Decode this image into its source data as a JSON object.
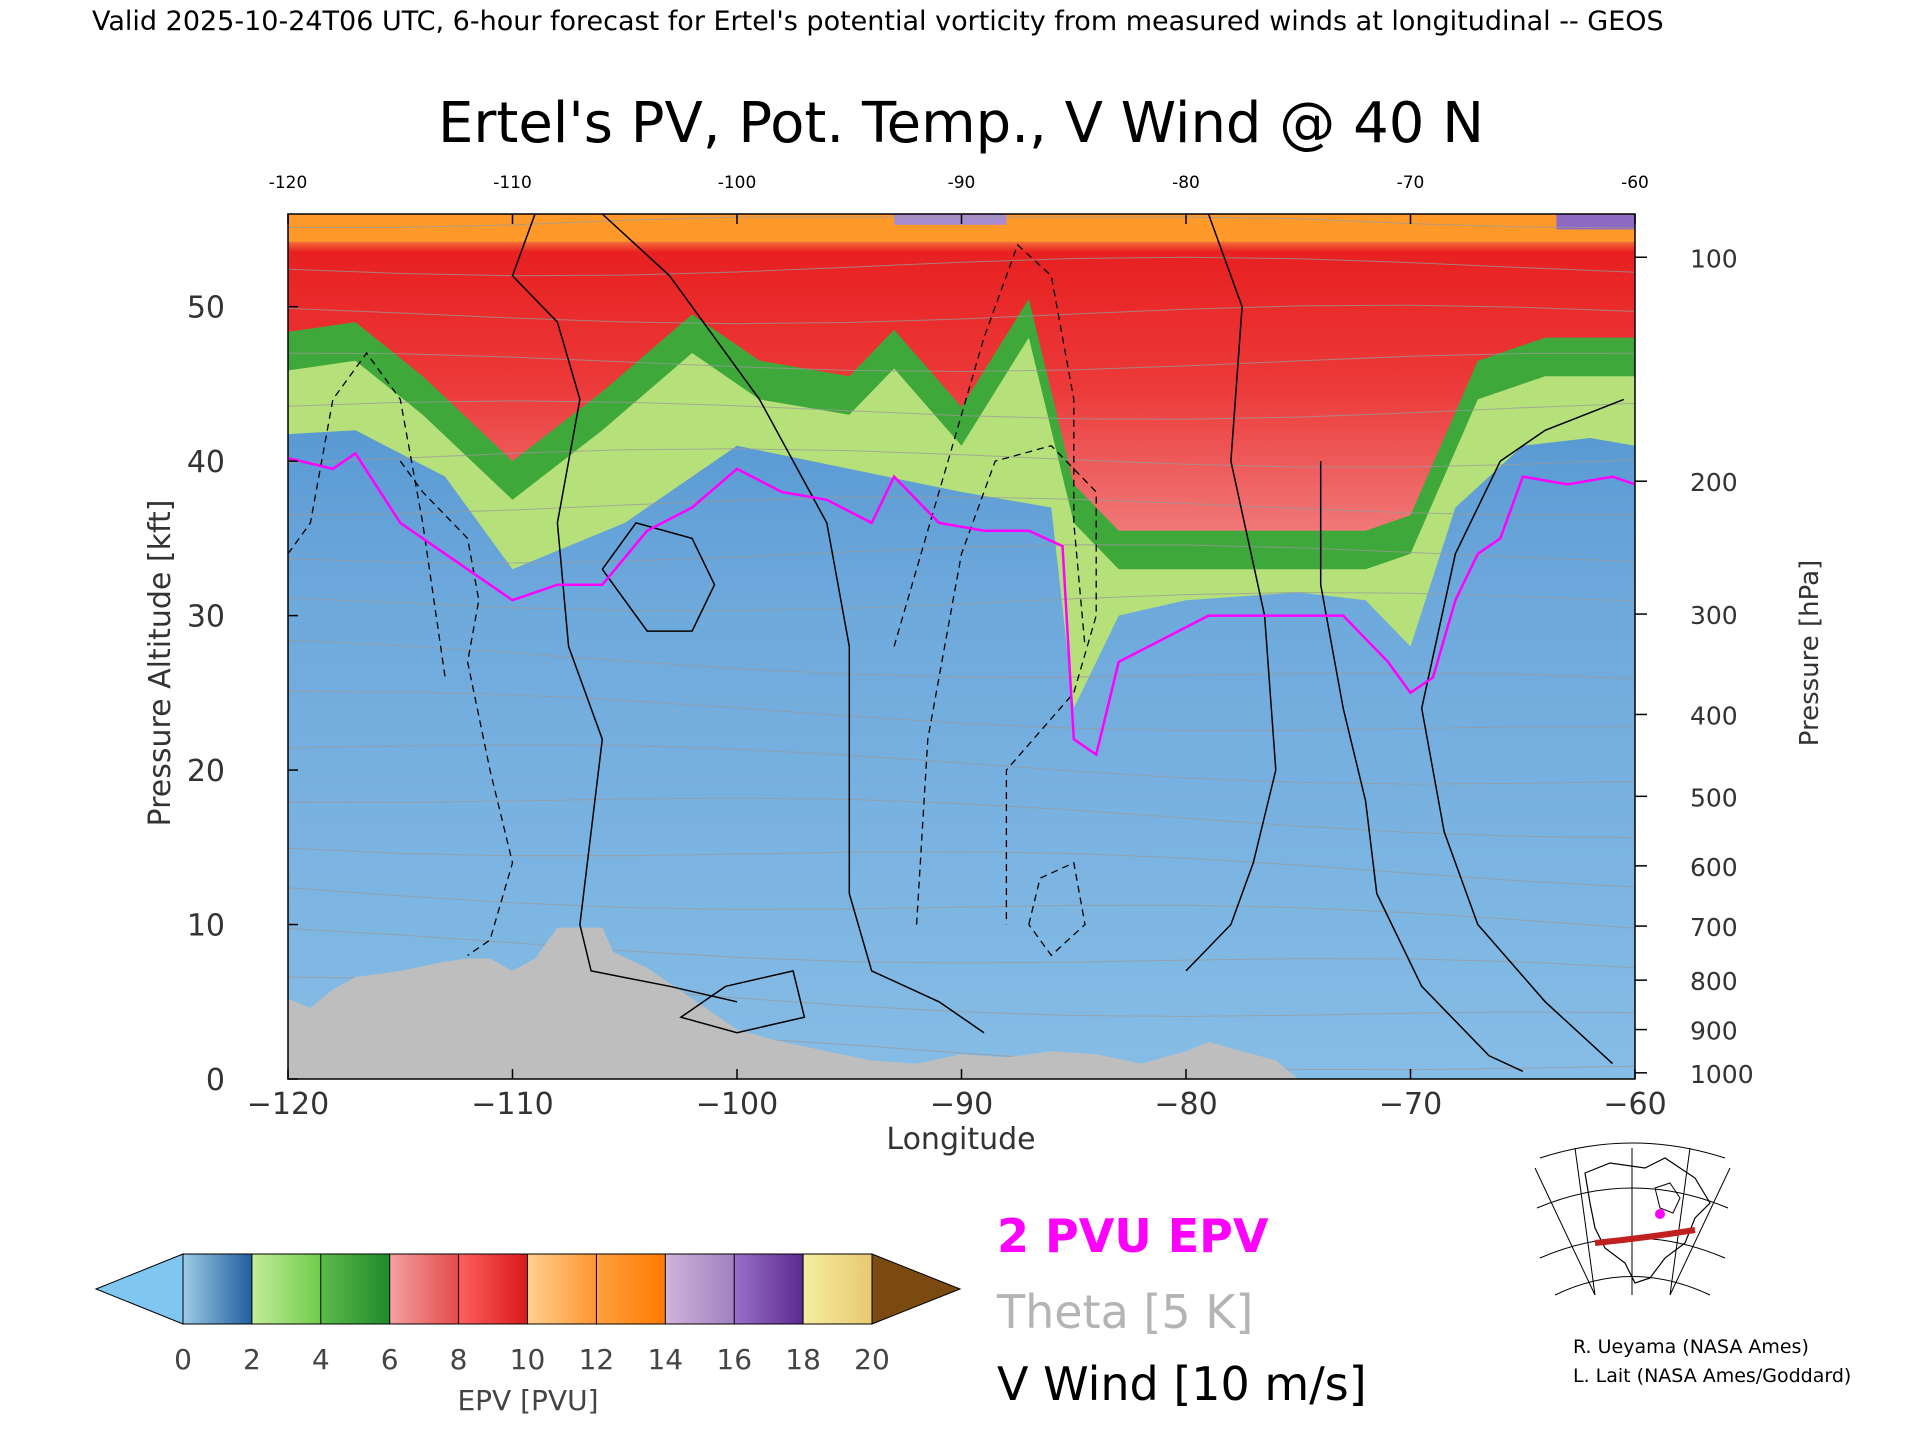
{
  "header": {
    "valid_line": "Valid 2025-10-24T06 UTC, 6-hour forecast for Ertel's potential vorticity from measured winds at longitudinal -- GEOS"
  },
  "colors": {
    "epv_2pvu": "#ff00ff",
    "theta": "#a0a0a0",
    "vwind": "#000000",
    "terrain": "#bebebe"
  },
  "chart_data": {
    "type": "heatmap",
    "title": "Ertel's PV, Pot. Temp., V Wind @ 40 N",
    "xlabel": "Longitude",
    "ylabel": "Pressure Altitude [kft]",
    "ylabel_right": "Pressure [hPa]",
    "xlim": [
      -120,
      -60
    ],
    "ylim": [
      0,
      56
    ],
    "x_ticks": [
      -120,
      -110,
      -100,
      -90,
      -80,
      -70,
      -60
    ],
    "x_tick_labels": [
      "−120",
      "−110",
      "−100",
      "−90",
      "−80",
      "−70",
      "−60"
    ],
    "top_tick_labels": [
      "-120",
      "-110",
      "-100",
      "-90",
      "-80",
      "-70",
      "-60"
    ],
    "y_ticks": [
      0,
      10,
      20,
      30,
      40,
      50
    ],
    "y_tick_labels": [
      "0",
      "10",
      "20",
      "30",
      "40",
      "50"
    ],
    "pressure_ticks": [
      {
        "hpa": "100",
        "kft": 53.2
      },
      {
        "hpa": "200",
        "kft": 38.7
      },
      {
        "hpa": "300",
        "kft": 30.1
      },
      {
        "hpa": "400",
        "kft": 23.6
      },
      {
        "hpa": "500",
        "kft": 18.3
      },
      {
        "hpa": "600",
        "kft": 13.8
      },
      {
        "hpa": "700",
        "kft": 9.9
      },
      {
        "hpa": "800",
        "kft": 6.4
      },
      {
        "hpa": "900",
        "kft": 3.2
      },
      {
        "hpa": "1000",
        "kft": 0.4
      }
    ],
    "tropopause_2pvu_kft": [
      [
        -120,
        40.2
      ],
      [
        -118,
        39.5
      ],
      [
        -117,
        40.5
      ],
      [
        -115,
        36
      ],
      [
        -113,
        34
      ],
      [
        -111,
        32
      ],
      [
        -110,
        31
      ],
      [
        -108,
        32
      ],
      [
        -106,
        32
      ],
      [
        -104,
        35.5
      ],
      [
        -102,
        37
      ],
      [
        -100,
        39.5
      ],
      [
        -98,
        38
      ],
      [
        -96,
        37.5
      ],
      [
        -94,
        36
      ],
      [
        -93,
        39
      ],
      [
        -91,
        36
      ],
      [
        -89,
        35.5
      ],
      [
        -87,
        35.5
      ],
      [
        -85.5,
        34.5
      ],
      [
        -85,
        22
      ],
      [
        -84,
        21
      ],
      [
        -83,
        27
      ],
      [
        -81,
        28.5
      ],
      [
        -79,
        30
      ],
      [
        -76,
        30
      ],
      [
        -73,
        30
      ],
      [
        -71,
        27
      ],
      [
        -70,
        25
      ],
      [
        -69,
        26
      ],
      [
        -68,
        31
      ],
      [
        -67,
        34
      ],
      [
        -66,
        35
      ],
      [
        -65,
        39
      ],
      [
        -63,
        38.5
      ],
      [
        -61,
        39
      ],
      [
        -60,
        38.5
      ]
    ],
    "epv_bands_top_kft": {
      "light_green": [
        [
          -120,
          41
        ],
        [
          -117,
          42
        ],
        [
          -113,
          39
        ],
        [
          -110,
          33
        ],
        [
          -105,
          36
        ],
        [
          -100,
          41
        ],
        [
          -95,
          39.5
        ],
        [
          -90,
          38
        ],
        [
          -86,
          37
        ],
        [
          -85,
          24
        ],
        [
          -83,
          30
        ],
        [
          -80,
          31
        ],
        [
          -75,
          31.5
        ],
        [
          -72,
          31
        ],
        [
          -70,
          28
        ],
        [
          -68,
          37
        ],
        [
          -65,
          41
        ],
        [
          -62,
          41.5
        ],
        [
          -60,
          41
        ]
      ],
      "green": [
        [
          -120,
          44
        ],
        [
          -117,
          46.5
        ],
        [
          -114,
          43
        ],
        [
          -110,
          37.5
        ],
        [
          -106,
          42
        ],
        [
          -102,
          47
        ],
        [
          -99,
          44
        ],
        [
          -95,
          43
        ],
        [
          -93,
          46
        ],
        [
          -90,
          41
        ],
        [
          -87,
          48
        ],
        [
          -85,
          36
        ],
        [
          -83,
          33
        ],
        [
          -80,
          33
        ],
        [
          -75,
          33
        ],
        [
          -72,
          33
        ],
        [
          -70,
          34
        ],
        [
          -67,
          44
        ],
        [
          -64,
          45.5
        ],
        [
          -60,
          45.5
        ]
      ]
    },
    "terrain_kft": [
      [
        -120,
        5.2
      ],
      [
        -119,
        4.6
      ],
      [
        -118,
        5.8
      ],
      [
        -117,
        6.6
      ],
      [
        -115,
        7.0
      ],
      [
        -113,
        7.6
      ],
      [
        -112,
        7.8
      ],
      [
        -111,
        7.8
      ],
      [
        -110,
        7.0
      ],
      [
        -109,
        7.8
      ],
      [
        -108,
        9.8
      ],
      [
        -106,
        9.8
      ],
      [
        -105.5,
        8.2
      ],
      [
        -104,
        7.2
      ],
      [
        -103,
        6.2
      ],
      [
        -102,
        5.2
      ],
      [
        -101,
        4.2
      ],
      [
        -100,
        3.2
      ],
      [
        -98,
        2.4
      ],
      [
        -96,
        1.8
      ],
      [
        -94,
        1.2
      ],
      [
        -92,
        1.0
      ],
      [
        -90,
        1.6
      ],
      [
        -88,
        1.4
      ],
      [
        -86,
        1.8
      ],
      [
        -84,
        1.6
      ],
      [
        -82,
        1.0
      ],
      [
        -80,
        1.8
      ],
      [
        -79,
        2.4
      ],
      [
        -78,
        2.0
      ],
      [
        -76,
        1.2
      ],
      [
        -75,
        0
      ]
    ],
    "vwind_contours_solid": [
      {
        "label": "0",
        "points": [
          [
            -109,
            56
          ],
          [
            -110,
            52
          ],
          [
            -108,
            49
          ],
          [
            -107,
            44
          ],
          [
            -108,
            36
          ],
          [
            -107.5,
            28
          ],
          [
            -106,
            22
          ],
          [
            -106.5,
            16
          ],
          [
            -107,
            10
          ],
          [
            -106.5,
            7
          ],
          [
            -103,
            6
          ],
          [
            -100,
            5
          ]
        ]
      },
      {
        "label": "0",
        "points": [
          [
            -106,
            56
          ],
          [
            -103,
            52
          ],
          [
            -99,
            44
          ],
          [
            -96,
            36
          ],
          [
            -95,
            28
          ],
          [
            -95,
            20
          ],
          [
            -95,
            12
          ],
          [
            -94,
            7
          ],
          [
            -91,
            5
          ],
          [
            -89,
            3
          ]
        ]
      },
      {
        "label": "0",
        "points": [
          [
            -79,
            56
          ],
          [
            -77.5,
            50
          ],
          [
            -78,
            40
          ],
          [
            -76.5,
            30
          ],
          [
            -76,
            20
          ],
          [
            -77,
            14
          ],
          [
            -78,
            10
          ],
          [
            -80,
            7
          ]
        ]
      },
      {
        "label": "10",
        "points": [
          [
            -74,
            40
          ],
          [
            -74,
            32
          ],
          [
            -73,
            24
          ],
          [
            -72,
            18
          ],
          [
            -71.5,
            12
          ],
          [
            -69.5,
            6
          ],
          [
            -66.5,
            1.5
          ],
          [
            -65,
            0.5
          ]
        ]
      },
      {
        "label": "10",
        "points": [
          [
            -60.5,
            44
          ],
          [
            -64,
            42
          ],
          [
            -66,
            40
          ],
          [
            -68,
            34
          ],
          [
            -69.5,
            24
          ],
          [
            -68.5,
            16
          ],
          [
            -67,
            10
          ],
          [
            -64,
            5
          ],
          [
            -61,
            1
          ]
        ]
      },
      {
        "label": "10",
        "points": [
          [
            -106,
            33
          ],
          [
            -104.5,
            36
          ],
          [
            -102,
            35
          ],
          [
            -101,
            32
          ],
          [
            -102,
            29
          ],
          [
            -104,
            29
          ],
          [
            -106,
            33
          ]
        ]
      },
      {
        "label": "10",
        "points": [
          [
            -100.5,
            6
          ],
          [
            -102.5,
            4
          ],
          [
            -100,
            3
          ],
          [
            -97,
            4
          ],
          [
            -97.5,
            7
          ],
          [
            -100.5,
            6
          ]
        ]
      }
    ],
    "vwind_contours_dashed": [
      {
        "label": "-10",
        "points": [
          [
            -120,
            34
          ],
          [
            -119,
            36
          ],
          [
            -118,
            44
          ],
          [
            -116.5,
            47
          ],
          [
            -115,
            44
          ],
          [
            -114,
            36
          ],
          [
            -113,
            26
          ]
        ]
      },
      {
        "label": "-10",
        "points": [
          [
            -115,
            40
          ],
          [
            -114,
            38
          ],
          [
            -112,
            35
          ],
          [
            -111.5,
            31
          ],
          [
            -112,
            27
          ],
          [
            -111,
            20
          ],
          [
            -110,
            14
          ],
          [
            -111,
            9
          ],
          [
            -112,
            8
          ]
        ]
      },
      {
        "label": "-10",
        "points": [
          [
            -93,
            28
          ],
          [
            -91,
            38
          ],
          [
            -89,
            48
          ],
          [
            -87.5,
            54
          ],
          [
            -86,
            52
          ],
          [
            -85,
            44
          ],
          [
            -85,
            36
          ],
          [
            -84.5,
            28
          ]
        ]
      },
      {
        "label": "-10",
        "points": [
          [
            -92,
            10
          ],
          [
            -91.5,
            22
          ],
          [
            -90,
            34
          ],
          [
            -88.5,
            40
          ],
          [
            -86,
            41
          ],
          [
            -84,
            38
          ],
          [
            -84,
            30
          ],
          [
            -85,
            25
          ],
          [
            -88,
            20
          ],
          [
            -88,
            14
          ],
          [
            -88,
            10
          ]
        ]
      },
      {
        "label": "-10",
        "points": [
          [
            -87,
            10
          ],
          [
            -86.5,
            13
          ],
          [
            -85,
            14
          ],
          [
            -84.5,
            10
          ],
          [
            -86,
            8
          ],
          [
            -87,
            10
          ]
        ]
      }
    ]
  },
  "legend": {
    "epv_label": "2 PVU EPV",
    "theta_label": "Theta [5 K]",
    "vwind_label": "V Wind [10 m/s]"
  },
  "colorbar": {
    "ticks": [
      "0",
      "2",
      "4",
      "6",
      "8",
      "10",
      "12",
      "14",
      "16",
      "18",
      "20"
    ],
    "label": "EPV [PVU]",
    "under_color": "#7fc6f0",
    "over_color": "#7a4a10",
    "segments": [
      [
        "#9ccbe6",
        "#1e5d9f"
      ],
      [
        "#c4ec99",
        "#6ecc4a"
      ],
      [
        "#5cbc4a",
        "#1f8a2a"
      ],
      [
        "#f4a0a0",
        "#e44a4a"
      ],
      [
        "#ff6060",
        "#d81818"
      ],
      [
        "#ffd090",
        "#ff9430"
      ],
      [
        "#ffa040",
        "#ff7a00"
      ],
      [
        "#d0b4da",
        "#a080c0"
      ],
      [
        "#9a6fc8",
        "#5a2a90"
      ],
      [
        "#f5eea0",
        "#e8c870"
      ]
    ]
  },
  "credits": {
    "line1": "R. Ueyama (NASA Ames)",
    "line2": "L. Lait (NASA Ames/Goddard)"
  }
}
